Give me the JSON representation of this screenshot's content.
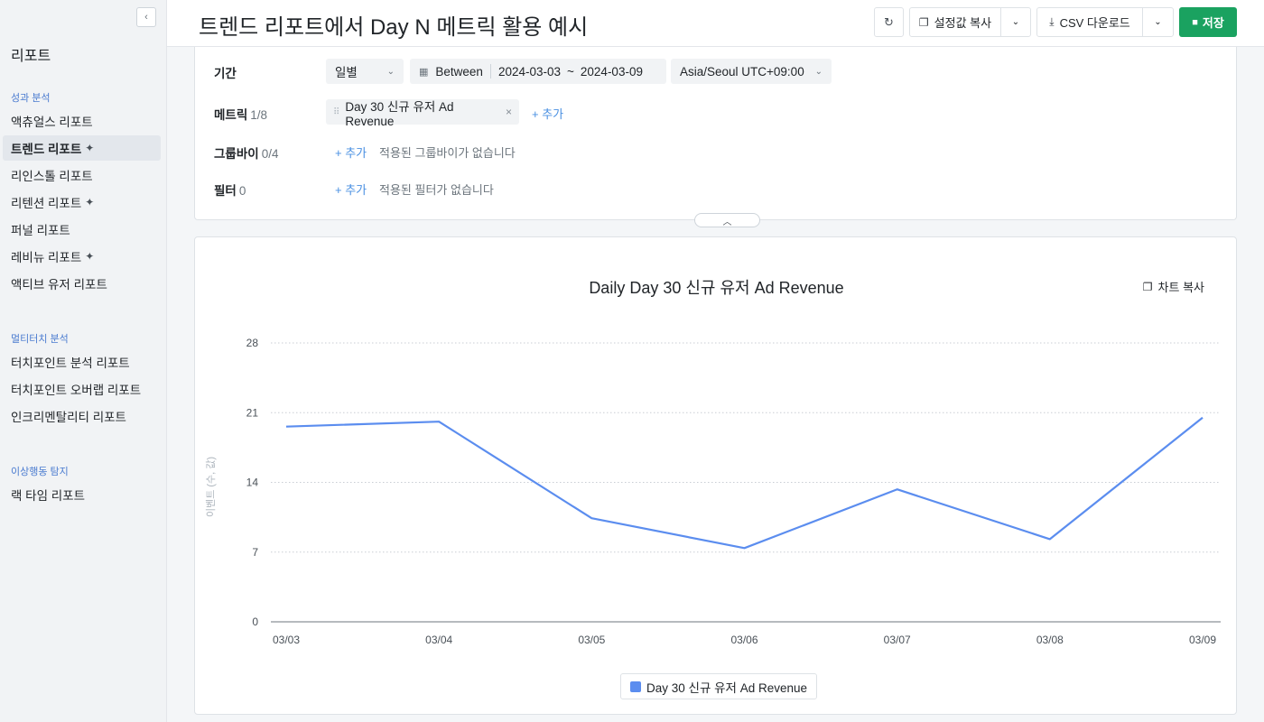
{
  "sidebar": {
    "title": "리포트",
    "sections": [
      {
        "label": "성과 분석",
        "items": [
          {
            "label": "액츄얼스 리포트",
            "sparkle": false
          },
          {
            "label": "트렌드 리포트",
            "sparkle": true
          },
          {
            "label": "리인스톨 리포트",
            "sparkle": false
          },
          {
            "label": "리텐션 리포트",
            "sparkle": true
          },
          {
            "label": "퍼널 리포트",
            "sparkle": false
          },
          {
            "label": "레비뉴 리포트",
            "sparkle": true
          },
          {
            "label": "액티브 유저 리포트",
            "sparkle": false
          }
        ]
      },
      {
        "label": "멀티터치 분석",
        "items": [
          {
            "label": "터치포인트 분석 리포트",
            "sparkle": false
          },
          {
            "label": "터치포인트 오버랩 리포트",
            "sparkle": false
          },
          {
            "label": "인크리멘탈리티 리포트",
            "sparkle": false
          }
        ]
      },
      {
        "label": "이상행동 탐지",
        "items": [
          {
            "label": "랙 타임 리포트",
            "sparkle": false
          }
        ]
      }
    ],
    "active_item": "트렌드 리포트"
  },
  "header": {
    "title": "트렌드 리포트에서 Day N 메트릭 활용 예시",
    "copy_settings_label": "설정값 복사",
    "csv_download_label": "CSV 다운로드",
    "save_label": "저장"
  },
  "config": {
    "period_label": "기간",
    "granularity": "일별",
    "range_mode": "Between",
    "date_start": "2024-03-03",
    "date_sep": "~",
    "date_end": "2024-03-09",
    "timezone": "Asia/Seoul UTC+09:00",
    "metric_label": "메트릭",
    "metric_count": "1/8",
    "metric_chip": "Day 30 신규 유저 Ad Revenue",
    "add_label": "+ 추가",
    "groupby_label": "그룹바이",
    "groupby_count": "0/4",
    "groupby_empty": "적용된 그룹바이가 없습니다",
    "filter_label": "필터",
    "filter_count": "0",
    "filter_empty": "적용된 필터가 없습니다"
  },
  "chart_copy_label": "차트 복사",
  "chart_data": {
    "type": "line",
    "title": "Daily Day 30 신규 유저 Ad Revenue",
    "ylabel": "이벤트 (수, 값)",
    "xlabel": "",
    "categories": [
      "03/03",
      "03/04",
      "03/05",
      "03/06",
      "03/07",
      "03/08",
      "03/09"
    ],
    "yticks": [
      0,
      7,
      14,
      21,
      28
    ],
    "ylim": [
      0,
      28
    ],
    "grid": true,
    "legend": "bottom",
    "series": [
      {
        "name": "Day 30 신규 유저 Ad Revenue",
        "color": "#5b8def",
        "values": [
          19.6,
          20.1,
          10.4,
          7.4,
          13.3,
          8.3,
          20.5
        ]
      }
    ]
  }
}
